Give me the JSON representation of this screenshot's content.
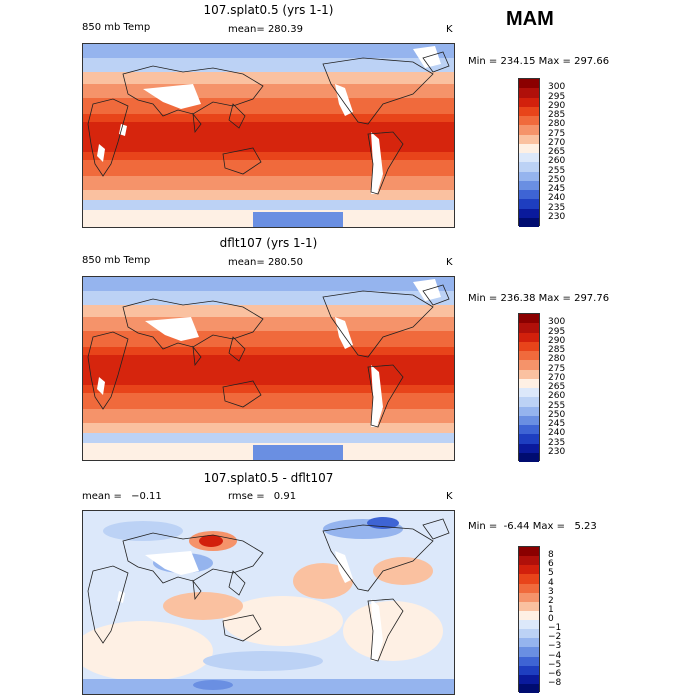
{
  "season": "MAM",
  "units": "K",
  "temp_scale": {
    "levels": [
      300,
      295,
      290,
      285,
      280,
      275,
      270,
      265,
      260,
      255,
      250,
      245,
      240,
      235,
      230
    ],
    "colors": [
      "#8b0000",
      "#b0100a",
      "#d2200c",
      "#e8441a",
      "#f06a3c",
      "#f5936a",
      "#fac1a0",
      "#fef0e4",
      "#dce8fa",
      "#bcd2f5",
      "#95b4ee",
      "#6a8fe2",
      "#3e64d4",
      "#1e3ec0",
      "#0a1a9c",
      "#000c70"
    ]
  },
  "diff_scale": {
    "levels": [
      8,
      6,
      5,
      4,
      3,
      2,
      1,
      0,
      -1,
      -2,
      -3,
      -4,
      -5,
      -6,
      -8
    ],
    "colors": [
      "#8b0000",
      "#b0100a",
      "#d2200c",
      "#e8441a",
      "#f06a3c",
      "#f5936a",
      "#fac1a0",
      "#fef0e4",
      "#dce8fa",
      "#bcd2f5",
      "#95b4ee",
      "#6a8fe2",
      "#3e64d4",
      "#1e3ec0",
      "#0a1a9c",
      "#000c70"
    ]
  },
  "chart_data": [
    {
      "type": "heatmap",
      "title": "107.splat0.5 (yrs 1-1)",
      "variable": "850 mb Temp",
      "stat_label": "mean=",
      "stat_value": "280.39",
      "units": "K",
      "min_text": "Min = 234.15",
      "max_text": "Max = 297.66",
      "min": 234.15,
      "max": 297.66,
      "mean": 280.39
    },
    {
      "type": "heatmap",
      "title": "dflt107 (yrs 1-1)",
      "variable": "850 mb Temp",
      "stat_label": "mean=",
      "stat_value": "280.50",
      "units": "K",
      "min_text": "Min = 236.38",
      "max_text": "Max = 297.76",
      "min": 236.38,
      "max": 297.76,
      "mean": 280.5
    },
    {
      "type": "heatmap",
      "title": "107.splat0.5 - dflt107",
      "mean_label": "mean =",
      "mean_value": "-0.11",
      "rmse_label": "rmse =",
      "rmse_value": "0.91",
      "units": "K",
      "min_text": "Min =  -6.44",
      "max_text": "Max =   5.23",
      "min": -6.44,
      "max": 5.23,
      "mean": -0.11,
      "rmse": 0.91
    }
  ]
}
